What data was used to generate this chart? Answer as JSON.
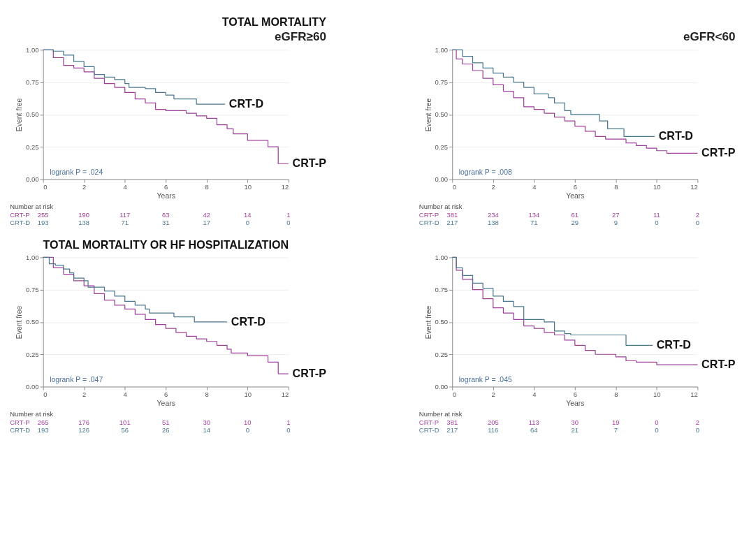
{
  "chart_data": [
    {
      "type": "step",
      "title": "TOTAL MORTALITY",
      "subtitle": "eGFR≥60",
      "xlabel": "Years",
      "ylabel": "Event free",
      "xlim": [
        0,
        12
      ],
      "xticks": [
        0,
        2,
        4,
        6,
        8,
        10,
        12
      ],
      "ylim": [
        0,
        1
      ],
      "yticks": [
        {
          "value": 0,
          "label": "0.00"
        },
        {
          "value": 0.25,
          "label": "0.25"
        },
        {
          "value": 0.5,
          "label": "0.50"
        },
        {
          "value": 0.75,
          "label": "0.75"
        },
        {
          "value": 1,
          "label": "1.00"
        }
      ],
      "grid": "y",
      "legend": false,
      "series": [
        {
          "name": "CRT-P",
          "color": "#a0409a",
          "x": [
            0,
            0.5,
            1,
            1.5,
            2,
            2.5,
            3,
            3.5,
            4,
            4.5,
            5,
            5.5,
            6,
            7,
            7.5,
            8,
            8.5,
            9,
            9.3,
            10,
            11,
            11.5,
            12
          ],
          "values": [
            1,
            0.94,
            0.88,
            0.86,
            0.83,
            0.78,
            0.74,
            0.71,
            0.67,
            0.62,
            0.59,
            0.54,
            0.53,
            0.51,
            0.49,
            0.47,
            0.42,
            0.39,
            0.35,
            0.3,
            0.25,
            0.12,
            0.12
          ]
        },
        {
          "name": "CRT-D",
          "color": "#4a7890",
          "x": [
            0,
            0.5,
            1,
            1.5,
            2,
            2.5,
            3,
            3.5,
            4,
            4.2,
            5,
            5.5,
            6,
            6.4,
            7.5,
            8.9
          ],
          "values": [
            1,
            0.99,
            0.96,
            0.91,
            0.87,
            0.81,
            0.79,
            0.77,
            0.74,
            0.71,
            0.7,
            0.67,
            0.65,
            0.62,
            0.58,
            0.58
          ]
        }
      ],
      "annotations": [
        "logrank P = .024",
        "Number at risk",
        "CRT-P 255 190 117 63 42 14 1",
        "CRT-D 193 138 71 31 17 0 0"
      ]
    },
    {
      "type": "step",
      "subtitle": "eGFR<60",
      "xlabel": "Years",
      "ylabel": "Event free",
      "xlim": [
        0,
        12
      ],
      "xticks": [
        0,
        2,
        4,
        6,
        8,
        10,
        12
      ],
      "ylim": [
        0,
        1
      ],
      "yticks": [
        {
          "value": 0,
          "label": "0.00"
        },
        {
          "value": 0.25,
          "label": "0.25"
        },
        {
          "value": 0.5,
          "label": "0.50"
        },
        {
          "value": 0.75,
          "label": "0.75"
        },
        {
          "value": 1,
          "label": "1.00"
        }
      ],
      "grid": "y",
      "legend": false,
      "series": [
        {
          "name": "CRT-P",
          "color": "#a0409a",
          "x": [
            0,
            0.2,
            0.5,
            1,
            1.5,
            2,
            2.5,
            3,
            3.5,
            4,
            4.5,
            5,
            5.5,
            6,
            6.5,
            7,
            7.5,
            8,
            8.5,
            9,
            9.5,
            10,
            10.5,
            12
          ],
          "values": [
            1,
            0.93,
            0.89,
            0.84,
            0.78,
            0.73,
            0.68,
            0.63,
            0.56,
            0.54,
            0.51,
            0.48,
            0.45,
            0.41,
            0.37,
            0.33,
            0.31,
            0.31,
            0.28,
            0.26,
            0.24,
            0.22,
            0.2,
            0.2
          ]
        },
        {
          "name": "CRT-D",
          "color": "#4a7890",
          "x": [
            0,
            0.5,
            1,
            1.5,
            2,
            2.5,
            3,
            3.5,
            4,
            4.7,
            5,
            5.5,
            5.8,
            7,
            7.2,
            7.6,
            8.4,
            9.9
          ],
          "values": [
            1,
            0.95,
            0.9,
            0.86,
            0.82,
            0.79,
            0.75,
            0.71,
            0.66,
            0.63,
            0.59,
            0.53,
            0.5,
            0.5,
            0.45,
            0.39,
            0.33,
            0.33
          ]
        }
      ],
      "annotations": [
        "logrank P = .008",
        "Number at risk",
        "CRT-P 381 234 134 61 27 11 2",
        "CRT-D 217 138 71 29 9 0 0"
      ]
    },
    {
      "type": "step",
      "title": "TOTAL MORTALITY OR HF HOSPITALIZATION",
      "xlabel": "Years",
      "ylabel": "Event free",
      "xlim": [
        0,
        12
      ],
      "xticks": [
        0,
        2,
        4,
        6,
        8,
        10,
        12
      ],
      "ylim": [
        0,
        1
      ],
      "yticks": [
        {
          "value": 0,
          "label": "0.00"
        },
        {
          "value": 0.25,
          "label": "0.25"
        },
        {
          "value": 0.5,
          "label": "0.50"
        },
        {
          "value": 0.75,
          "label": "0.75"
        },
        {
          "value": 1,
          "label": "1.00"
        }
      ],
      "grid": "y",
      "legend": false,
      "series": [
        {
          "name": "CRT-P",
          "color": "#a0409a",
          "x": [
            0,
            0.5,
            1,
            1.5,
            2,
            2.5,
            3,
            3.5,
            4,
            4.5,
            5,
            5.5,
            6,
            6.5,
            7,
            7.5,
            8,
            8.5,
            9,
            9.2,
            10,
            11,
            11.5,
            12
          ],
          "values": [
            1,
            0.92,
            0.87,
            0.82,
            0.78,
            0.72,
            0.67,
            0.63,
            0.6,
            0.56,
            0.52,
            0.48,
            0.45,
            0.42,
            0.39,
            0.37,
            0.35,
            0.32,
            0.29,
            0.26,
            0.24,
            0.19,
            0.1,
            0.1
          ]
        },
        {
          "name": "CRT-D",
          "color": "#4a7890",
          "x": [
            0,
            0.3,
            0.6,
            1,
            1.3,
            1.5,
            2,
            2.2,
            3,
            3.5,
            4,
            4.5,
            5,
            5.2,
            6.4,
            7.4,
            9
          ],
          "values": [
            1,
            0.95,
            0.94,
            0.91,
            0.88,
            0.84,
            0.82,
            0.77,
            0.74,
            0.7,
            0.66,
            0.63,
            0.6,
            0.57,
            0.54,
            0.5,
            0.5
          ]
        }
      ],
      "annotations": [
        "logrank P = .047",
        "Number at risk",
        "CRT-P 265 176 101 51 30 10 1",
        "CRT-D 193 126 56 26 14 0 0"
      ]
    },
    {
      "type": "step",
      "xlabel": "Years",
      "ylabel": "Event free",
      "xlim": [
        0,
        12
      ],
      "xticks": [
        0,
        2,
        4,
        6,
        8,
        10,
        12
      ],
      "ylim": [
        0,
        1
      ],
      "yticks": [
        {
          "value": 0,
          "label": "0.00"
        },
        {
          "value": 0.25,
          "label": "0.25"
        },
        {
          "value": 0.5,
          "label": "0.50"
        },
        {
          "value": 0.75,
          "label": "0.75"
        },
        {
          "value": 1,
          "label": "1.00"
        }
      ],
      "grid": "y",
      "legend": false,
      "series": [
        {
          "name": "CRT-P",
          "color": "#a0409a",
          "x": [
            0,
            0.2,
            0.5,
            1,
            1.5,
            2,
            2.5,
            3,
            3.5,
            4,
            4.5,
            5,
            5.5,
            6,
            6.5,
            7,
            8,
            8.5,
            9,
            10,
            12
          ],
          "values": [
            1,
            0.9,
            0.83,
            0.75,
            0.68,
            0.61,
            0.57,
            0.52,
            0.47,
            0.45,
            0.42,
            0.4,
            0.36,
            0.32,
            0.28,
            0.25,
            0.23,
            0.2,
            0.19,
            0.17,
            0.17
          ]
        },
        {
          "name": "CRT-D",
          "color": "#4a7890",
          "x": [
            0,
            0.2,
            0.5,
            1,
            1.5,
            2,
            2.5,
            3,
            3.5,
            4.5,
            5,
            5.5,
            5.8,
            8.4,
            8.5,
            9.8
          ],
          "values": [
            1,
            0.92,
            0.86,
            0.8,
            0.76,
            0.7,
            0.66,
            0.62,
            0.52,
            0.5,
            0.43,
            0.41,
            0.4,
            0.4,
            0.32,
            0.32
          ]
        }
      ],
      "annotations": [
        "logrank P = .045",
        "Number at risk",
        "CRT-P 381 205 113 30 19 0 2",
        "CRT-D 217 116 64 21 7 0 0"
      ]
    }
  ]
}
